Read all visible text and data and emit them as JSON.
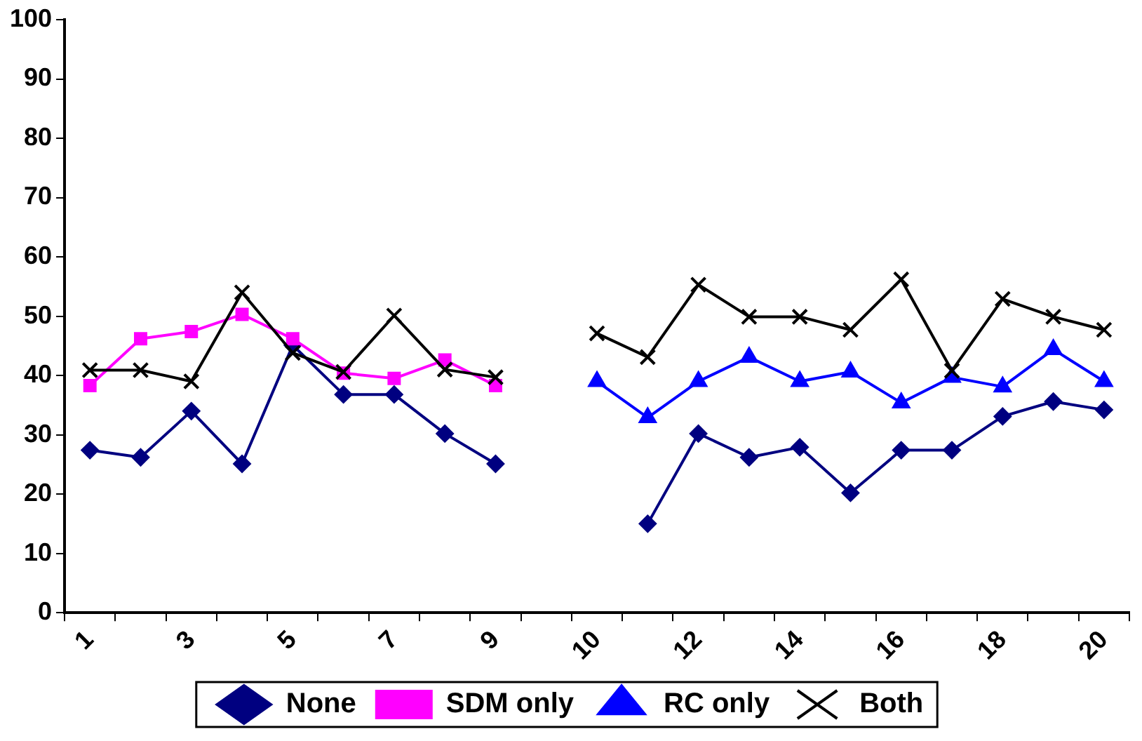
{
  "chart_data": {
    "type": "line",
    "categories": [
      "1",
      null,
      "3",
      null,
      "5",
      null,
      "7",
      null,
      "9",
      null,
      "10",
      null,
      "12",
      null,
      "14",
      null,
      "16",
      null,
      "18",
      null,
      "20"
    ],
    "series": [
      {
        "name": "None",
        "color": "#000080",
        "marker": "diamond",
        "values": [
          27.4,
          26.2,
          34,
          25.1,
          45.1,
          36.8,
          36.8,
          30.2,
          25.1,
          null,
          null,
          15,
          30.2,
          26.2,
          27.9,
          20.2,
          27.4,
          27.4,
          33.1,
          35.6,
          34.2
        ]
      },
      {
        "name": "SDM only",
        "color": "#ff00ff",
        "marker": "square",
        "values": [
          38.3,
          46.2,
          47.4,
          50.3,
          46.2,
          40.4,
          39.5,
          42.6,
          38.3,
          null,
          null,
          null,
          null,
          null,
          null,
          null,
          null,
          null,
          null,
          null,
          null
        ]
      },
      {
        "name": "RC only",
        "color": "#0000ff",
        "marker": "triangle",
        "values": [
          null,
          null,
          null,
          null,
          null,
          null,
          null,
          null,
          null,
          null,
          39,
          32.9,
          39,
          43.1,
          39,
          40.6,
          35.4,
          39.7,
          38.1,
          44.4,
          39
        ]
      },
      {
        "name": "Both",
        "color": "#000000",
        "marker": "cross",
        "values": [
          40.9,
          40.9,
          39,
          54,
          43.8,
          40.6,
          50.1,
          41,
          39.7,
          null,
          47.1,
          43.1,
          55.3,
          49.9,
          49.9,
          47.7,
          56.2,
          40.8,
          52.9,
          49.9,
          47.7
        ]
      }
    ],
    "ylim": [
      0,
      100
    ],
    "yticks": [
      0,
      10,
      20,
      30,
      40,
      50,
      60,
      70,
      80,
      90,
      100
    ],
    "grid": false,
    "legend": "bottom",
    "line_style": "solid"
  }
}
